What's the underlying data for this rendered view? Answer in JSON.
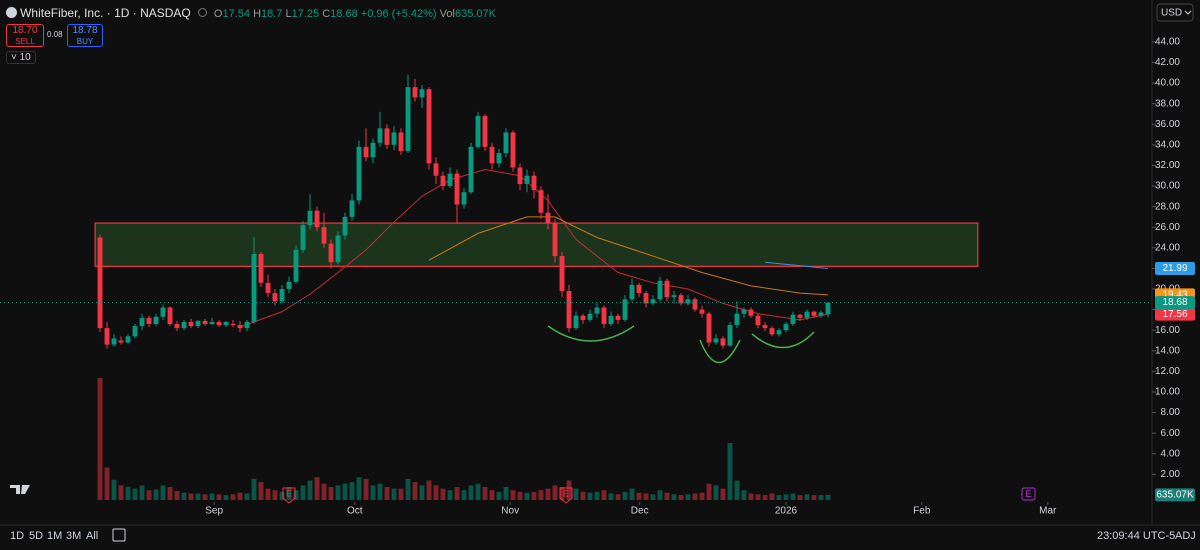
{
  "header": {
    "symbol": "WhiteFiber, Inc. · 1D · NASDAQ",
    "o": "O",
    "h": "H",
    "l": "L",
    "c": "C",
    "change": "+0.96 (+5.42%)",
    "vol": "Vol",
    "sell_price": "18.70",
    "sell": "SELL",
    "spread": "0.08",
    "buy_price": "18.78",
    "buy": "BUY",
    "indicators": "10",
    "currency": "USD"
  },
  "toolbar": {
    "ranges": [
      "1D",
      "5D",
      "1M",
      "3M",
      "All"
    ],
    "time": "23:09:44 UTC-5",
    "adj": "ADJ"
  },
  "earnings_label": "E",
  "chart_data": {
    "type": "candlestick",
    "xlim": [
      -14.29,
      150.29
    ],
    "xticks": [
      {
        "value": 16.3,
        "label": "Sep"
      },
      {
        "value": 36.4,
        "label": "Oct"
      },
      {
        "value": 58.6,
        "label": "Nov"
      },
      {
        "value": 77.1,
        "label": "Dec"
      },
      {
        "value": 98,
        "label": "2026"
      },
      {
        "value": 117.4,
        "label": "Feb"
      },
      {
        "value": 135.4,
        "label": "Mar"
      }
    ],
    "ylim": [
      -0.49,
      45.15
    ],
    "yticks": [
      {
        "value": 2,
        "label": "2.00"
      },
      {
        "value": 4,
        "label": "4.00"
      },
      {
        "value": 6,
        "label": "6.00"
      },
      {
        "value": 8,
        "label": "8.00"
      },
      {
        "value": 10,
        "label": "10.00"
      },
      {
        "value": 12,
        "label": "12.00"
      },
      {
        "value": 14,
        "label": "14.00"
      },
      {
        "value": 16,
        "label": "16.00"
      },
      {
        "value": 18,
        "label": "18.00"
      },
      {
        "value": 20,
        "label": "20.00"
      },
      {
        "value": 22,
        "label": "22.00"
      },
      {
        "value": 24,
        "label": "24.00"
      },
      {
        "value": 26,
        "label": "26.00"
      },
      {
        "value": 28,
        "label": "28.00"
      },
      {
        "value": 30,
        "label": "30.00"
      },
      {
        "value": 32,
        "label": "32.00"
      },
      {
        "value": 34,
        "label": "34.00"
      },
      {
        "value": 36,
        "label": "36.00"
      },
      {
        "value": 38,
        "label": "38.00"
      },
      {
        "value": 40,
        "label": "40.00"
      },
      {
        "value": 42,
        "label": "42.00"
      },
      {
        "value": 44,
        "label": "44.00"
      }
    ],
    "y2lim": [
      0,
      57.8
    ],
    "up_color": "#089981",
    "down_color": "#f23645",
    "candles": [
      [
        25.0,
        25.3,
        15.8,
        16.2
      ],
      [
        16.2,
        16.8,
        14.2,
        14.6
      ],
      [
        14.6,
        15.6,
        14.4,
        15.2
      ],
      [
        15.0,
        15.4,
        14.6,
        14.8
      ],
      [
        14.8,
        15.6,
        14.7,
        15.4
      ],
      [
        15.4,
        16.6,
        15.2,
        16.4
      ],
      [
        16.4,
        17.6,
        16.0,
        17.2
      ],
      [
        17.2,
        17.4,
        16.3,
        16.6
      ],
      [
        16.6,
        17.6,
        16.4,
        17.3
      ],
      [
        17.3,
        18.5,
        17.0,
        18.2
      ],
      [
        18.2,
        18.3,
        16.4,
        16.6
      ],
      [
        16.6,
        16.9,
        15.9,
        16.2
      ],
      [
        16.2,
        17.0,
        16.0,
        16.8
      ],
      [
        16.8,
        17.1,
        16.2,
        16.4
      ],
      [
        16.4,
        17.0,
        16.2,
        16.9
      ],
      [
        16.9,
        17.1,
        16.4,
        16.6
      ],
      [
        16.6,
        17.2,
        16.5,
        16.8
      ],
      [
        16.8,
        17.0,
        16.3,
        16.5
      ],
      [
        16.5,
        16.9,
        16.3,
        16.8
      ],
      [
        16.6,
        17.0,
        16.3,
        16.5
      ],
      [
        16.5,
        16.9,
        15.8,
        16.2
      ],
      [
        16.2,
        17.0,
        15.9,
        16.8
      ],
      [
        16.8,
        25.0,
        16.6,
        23.4
      ],
      [
        23.4,
        23.6,
        20.2,
        20.6
      ],
      [
        20.6,
        21.4,
        19.2,
        19.6
      ],
      [
        19.6,
        20.0,
        18.4,
        18.8
      ],
      [
        18.8,
        20.4,
        18.6,
        20.0
      ],
      [
        20.0,
        21.2,
        19.6,
        20.7
      ],
      [
        20.7,
        24.2,
        20.5,
        23.8
      ],
      [
        23.8,
        26.6,
        23.5,
        26.2
      ],
      [
        26.2,
        29.2,
        25.8,
        27.6
      ],
      [
        27.6,
        28.0,
        25.6,
        26.0
      ],
      [
        26.0,
        27.4,
        24.0,
        24.4
      ],
      [
        24.4,
        24.8,
        22.0,
        22.6
      ],
      [
        22.6,
        25.6,
        22.4,
        25.2
      ],
      [
        25.2,
        27.4,
        24.8,
        27.0
      ],
      [
        27.0,
        29.2,
        26.6,
        28.6
      ],
      [
        28.6,
        34.4,
        28.2,
        33.8
      ],
      [
        33.8,
        35.6,
        32.4,
        32.8
      ],
      [
        32.8,
        34.6,
        32.2,
        34.2
      ],
      [
        34.2,
        37.2,
        33.8,
        35.6
      ],
      [
        35.6,
        36.0,
        33.6,
        34.0
      ],
      [
        34.0,
        35.8,
        33.5,
        35.2
      ],
      [
        35.2,
        35.6,
        33.0,
        33.4
      ],
      [
        33.4,
        40.8,
        33.2,
        39.6
      ],
      [
        39.6,
        40.4,
        38.2,
        38.6
      ],
      [
        38.6,
        39.8,
        37.6,
        39.4
      ],
      [
        39.4,
        39.6,
        31.6,
        32.2
      ],
      [
        32.2,
        32.8,
        30.2,
        31.0
      ],
      [
        31.0,
        31.4,
        29.6,
        30.0
      ],
      [
        30.0,
        31.8,
        29.8,
        31.2
      ],
      [
        31.2,
        31.6,
        26.4,
        28.2
      ],
      [
        28.2,
        29.8,
        27.8,
        29.4
      ],
      [
        29.4,
        34.2,
        29.2,
        33.8
      ],
      [
        33.8,
        37.2,
        33.6,
        36.8
      ],
      [
        36.8,
        37.0,
        33.4,
        33.8
      ],
      [
        33.8,
        34.2,
        31.6,
        32.2
      ],
      [
        32.2,
        33.6,
        31.8,
        33.2
      ],
      [
        33.2,
        35.6,
        32.8,
        35.2
      ],
      [
        35.2,
        35.4,
        31.4,
        31.8
      ],
      [
        31.8,
        32.2,
        29.6,
        30.2
      ],
      [
        30.2,
        31.6,
        29.4,
        31.0
      ],
      [
        31.0,
        31.4,
        28.8,
        29.6
      ],
      [
        29.6,
        30.0,
        26.8,
        27.4
      ],
      [
        27.4,
        29.2,
        25.8,
        26.4
      ],
      [
        26.4,
        26.8,
        22.6,
        23.2
      ],
      [
        23.2,
        23.6,
        19.2,
        19.8
      ],
      [
        19.8,
        20.4,
        15.8,
        16.2
      ],
      [
        16.2,
        17.8,
        16.0,
        17.4
      ],
      [
        17.4,
        17.6,
        16.6,
        17.0
      ],
      [
        17.0,
        18.0,
        16.8,
        17.6
      ],
      [
        17.6,
        18.6,
        17.2,
        18.2
      ],
      [
        18.2,
        18.4,
        16.2,
        16.6
      ],
      [
        16.6,
        17.8,
        16.4,
        17.4
      ],
      [
        17.4,
        17.6,
        16.6,
        17.0
      ],
      [
        17.0,
        19.4,
        16.8,
        19.0
      ],
      [
        19.0,
        21.0,
        18.8,
        20.4
      ],
      [
        20.4,
        20.6,
        19.2,
        19.6
      ],
      [
        19.6,
        19.8,
        18.2,
        18.6
      ],
      [
        18.6,
        19.4,
        18.4,
        19.0
      ],
      [
        19.0,
        21.2,
        18.8,
        20.8
      ],
      [
        20.8,
        21.0,
        18.8,
        19.2
      ],
      [
        19.2,
        19.8,
        18.6,
        19.4
      ],
      [
        19.4,
        19.6,
        18.4,
        18.6
      ],
      [
        18.6,
        19.4,
        18.4,
        19.0
      ],
      [
        19.0,
        19.2,
        17.8,
        18.0
      ],
      [
        18.0,
        18.4,
        17.2,
        17.6
      ],
      [
        17.6,
        17.8,
        14.4,
        14.8
      ],
      [
        14.8,
        15.6,
        14.6,
        15.2
      ],
      [
        15.2,
        15.4,
        14.2,
        14.5
      ],
      [
        14.5,
        16.8,
        14.4,
        16.5
      ],
      [
        16.5,
        18.8,
        16.2,
        17.6
      ],
      [
        17.6,
        18.2,
        17.2,
        18.0
      ],
      [
        18.0,
        18.2,
        17.2,
        17.4
      ],
      [
        17.4,
        17.6,
        16.2,
        16.5
      ],
      [
        16.5,
        16.8,
        15.9,
        16.2
      ],
      [
        16.2,
        16.4,
        15.4,
        15.6
      ],
      [
        15.6,
        16.2,
        15.4,
        16.0
      ],
      [
        16.0,
        16.8,
        15.8,
        16.6
      ],
      [
        16.6,
        17.8,
        16.4,
        17.5
      ],
      [
        17.5,
        17.6,
        16.9,
        17.2
      ],
      [
        17.2,
        18.0,
        17.0,
        17.8
      ],
      [
        17.8,
        17.9,
        17.2,
        17.4
      ],
      [
        17.4,
        17.9,
        17.2,
        17.72
      ],
      [
        17.54,
        18.7,
        17.25,
        18.68
      ]
    ],
    "volume": [
      15,
      4,
      2.5,
      1.8,
      1.6,
      1.4,
      1.8,
      1.2,
      1.3,
      1.8,
      1.6,
      1.1,
      0.9,
      0.8,
      0.8,
      0.7,
      0.8,
      0.7,
      0.6,
      0.7,
      0.9,
      0.8,
      2.6,
      2.2,
      1.4,
      1.2,
      1.0,
      1.6,
      1.2,
      1.8,
      2.4,
      2.8,
      2.0,
      1.6,
      1.8,
      2.0,
      2.2,
      2.8,
      2.6,
      1.8,
      2.0,
      1.6,
      1.4,
      1.4,
      2.6,
      2.2,
      1.8,
      2.4,
      1.8,
      1.4,
      1.2,
      1.6,
      1.2,
      1.8,
      2.0,
      1.6,
      1.2,
      1.0,
      1.6,
      1.2,
      1.0,
      0.9,
      1.0,
      1.2,
      1.4,
      1.8,
      1.6,
      2.4,
      1.4,
      1.0,
      0.9,
      1.0,
      1.2,
      0.8,
      0.7,
      1.0,
      1.4,
      0.9,
      0.8,
      0.7,
      1.2,
      0.9,
      0.7,
      0.6,
      0.7,
      0.8,
      0.9,
      2.0,
      1.8,
      1.4,
      7.0,
      2.4,
      1.2,
      0.8,
      0.7,
      0.6,
      0.8,
      0.6,
      0.7,
      0.8,
      0.6,
      0.7,
      0.6,
      0.6,
      0.63507
    ],
    "volume_labels": {
      "104": "635.07K"
    },
    "volume_label_color": "#1b7f77",
    "lines": [
      {
        "color": "#c62b36",
        "label_color": "#f23645",
        "x": [
          20,
          26,
          30,
          34,
          38,
          42,
          46,
          50,
          55,
          60,
          64,
          68,
          74,
          79,
          84,
          89,
          94,
          100,
          104
        ],
        "values": [
          16.3,
          17.8,
          19.5,
          21.6,
          23.8,
          26.5,
          29.0,
          30.6,
          31.6,
          31.0,
          28.6,
          24.8,
          21.6,
          20.6,
          20.0,
          18.6,
          17.6,
          17.0,
          17.56
        ]
      },
      {
        "color": "#c77a1c",
        "label_color": "#f7931a",
        "x": [
          47,
          54,
          61,
          65,
          71,
          79,
          86,
          93,
          100,
          104
        ],
        "values": [
          22.8,
          25.4,
          27.0,
          27.0,
          25.0,
          23.2,
          21.6,
          20.3,
          19.6,
          19.43
        ]
      },
      {
        "color": "#3f8fd6",
        "label_color": "#2e9be6",
        "x": [
          95,
          104
        ],
        "values": [
          22.6,
          21.99
        ]
      }
    ],
    "zone": {
      "x": [
        -0.7,
        125.4
      ],
      "y": [
        22.2,
        26.4
      ],
      "fill": "rgba(60,140,60,0.3)",
      "stroke": "#f23645"
    }
  }
}
